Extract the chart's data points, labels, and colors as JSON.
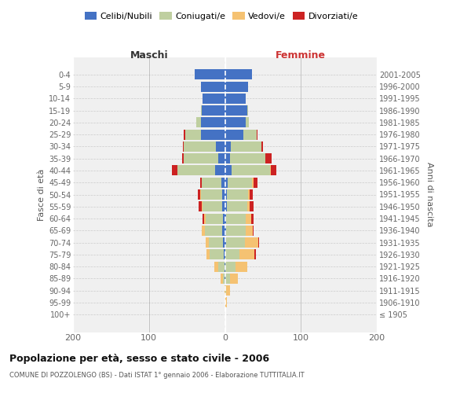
{
  "age_groups": [
    "100+",
    "95-99",
    "90-94",
    "85-89",
    "80-84",
    "75-79",
    "70-74",
    "65-69",
    "60-64",
    "55-59",
    "50-54",
    "45-49",
    "40-44",
    "35-39",
    "30-34",
    "25-29",
    "20-24",
    "15-19",
    "10-14",
    "5-9",
    "0-4"
  ],
  "birth_years": [
    "≤ 1905",
    "1906-1910",
    "1911-1915",
    "1916-1920",
    "1921-1925",
    "1926-1930",
    "1931-1935",
    "1936-1940",
    "1941-1945",
    "1946-1950",
    "1951-1955",
    "1956-1960",
    "1961-1965",
    "1966-1970",
    "1971-1975",
    "1976-1980",
    "1981-1985",
    "1986-1990",
    "1991-1995",
    "1996-2000",
    "2001-2005"
  ],
  "colors": {
    "celibe": "#4472C4",
    "coniugato": "#BFCFA0",
    "vedovo": "#F5C272",
    "divorziato": "#CC2222"
  },
  "maschi": {
    "celibe": [
      0,
      0,
      0,
      1,
      1,
      2,
      3,
      4,
      3,
      4,
      4,
      5,
      13,
      9,
      12,
      32,
      32,
      31,
      29,
      32,
      40
    ],
    "coniugato": [
      0,
      0,
      0,
      2,
      8,
      18,
      18,
      22,
      22,
      25,
      28,
      26,
      50,
      45,
      42,
      20,
      6,
      1,
      0,
      0,
      0
    ],
    "vedovo": [
      0,
      0,
      1,
      3,
      5,
      4,
      4,
      4,
      2,
      1,
      1,
      0,
      0,
      0,
      0,
      0,
      0,
      0,
      0,
      0,
      0
    ],
    "divorziato": [
      0,
      0,
      0,
      0,
      0,
      0,
      0,
      0,
      2,
      5,
      3,
      2,
      7,
      2,
      1,
      2,
      0,
      0,
      0,
      0,
      0
    ]
  },
  "femmine": {
    "nubile": [
      0,
      0,
      0,
      1,
      1,
      1,
      2,
      2,
      2,
      3,
      3,
      4,
      9,
      7,
      8,
      24,
      27,
      29,
      27,
      30,
      36
    ],
    "coniugata": [
      0,
      1,
      2,
      6,
      13,
      18,
      24,
      25,
      25,
      26,
      27,
      32,
      50,
      46,
      40,
      18,
      5,
      1,
      0,
      0,
      0
    ],
    "vedova": [
      0,
      2,
      5,
      10,
      15,
      20,
      18,
      10,
      8,
      4,
      3,
      2,
      1,
      0,
      0,
      0,
      0,
      0,
      0,
      0,
      0
    ],
    "divorziata": [
      0,
      0,
      0,
      0,
      0,
      2,
      1,
      1,
      3,
      5,
      4,
      5,
      8,
      8,
      2,
      1,
      0,
      0,
      0,
      0,
      0
    ]
  },
  "xlim": [
    -200,
    200
  ],
  "xticks": [
    -200,
    -100,
    0,
    100,
    200
  ],
  "xticklabels": [
    "200",
    "100",
    "0",
    "100",
    "200"
  ],
  "title": "Popolazione per età, sesso e stato civile - 2006",
  "subtitle": "COMUNE DI POZZOLENGO (BS) - Dati ISTAT 1° gennaio 2006 - Elaborazione TUTTITALIA.IT",
  "ylabel_left": "Fasce di età",
  "ylabel_right": "Anni di nascita",
  "header_maschi": "Maschi",
  "header_femmine": "Femmine",
  "bg_color": "#F0F0F0",
  "bar_height": 0.85
}
